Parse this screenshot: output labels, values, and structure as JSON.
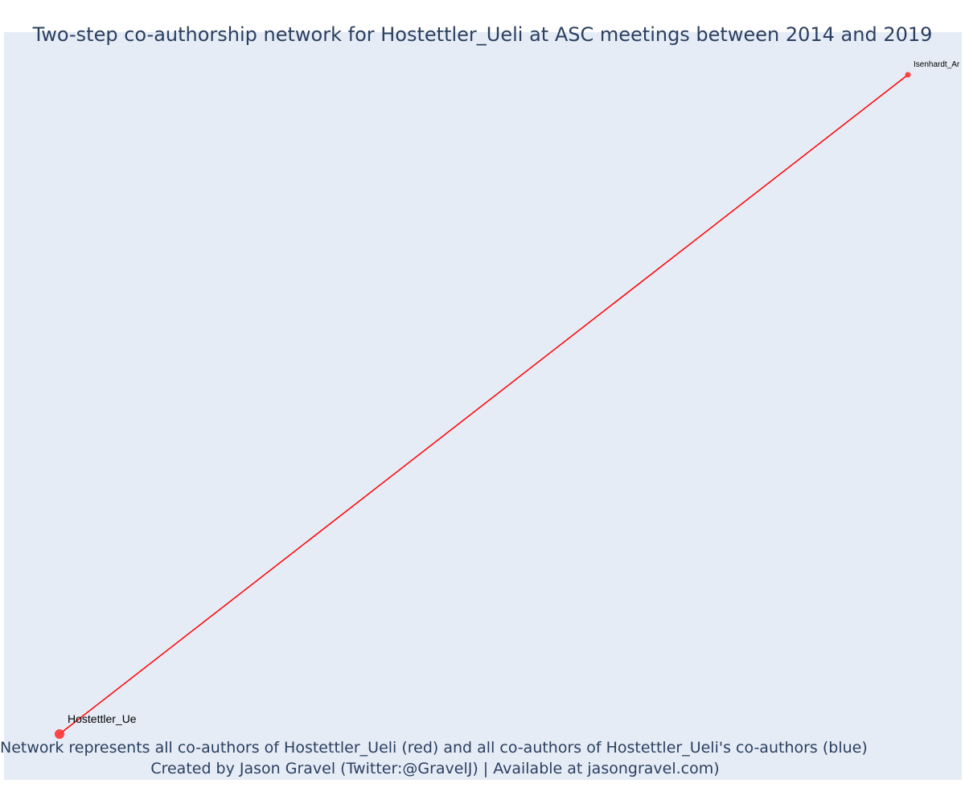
{
  "title": "Two-step co-authorship network for Hostettler_Ueli at ASC meetings between 2014 and 2019",
  "caption": {
    "line1": "Network represents all co-authors of Hostettler_Ueli (red) and all co-authors of Hostettler_Ueli's co-authors (blue)",
    "line2": "Created by Jason Gravel (Twitter:@GravelJ) | Available at jasongravel.com)"
  },
  "colors": {
    "background": "#e5ecf6",
    "node": "#ff3333",
    "edge": "#ff0000",
    "text": "#2a3f5f"
  },
  "chart_data": {
    "type": "network",
    "nodes": [
      {
        "id": "Hostettler_Ueli",
        "label": "Hostettler_Ue",
        "group": "focal",
        "color": "#ff3333",
        "x": 0,
        "y": 0
      },
      {
        "id": "Isenhardt_Anna",
        "label": "Isenhardt_Ar",
        "group": "co-author",
        "color": "#ff3333",
        "x": 1,
        "y": 1
      }
    ],
    "edges": [
      {
        "source": "Hostettler_Ueli",
        "target": "Isenhardt_Anna",
        "color": "#ff0000"
      }
    ]
  }
}
